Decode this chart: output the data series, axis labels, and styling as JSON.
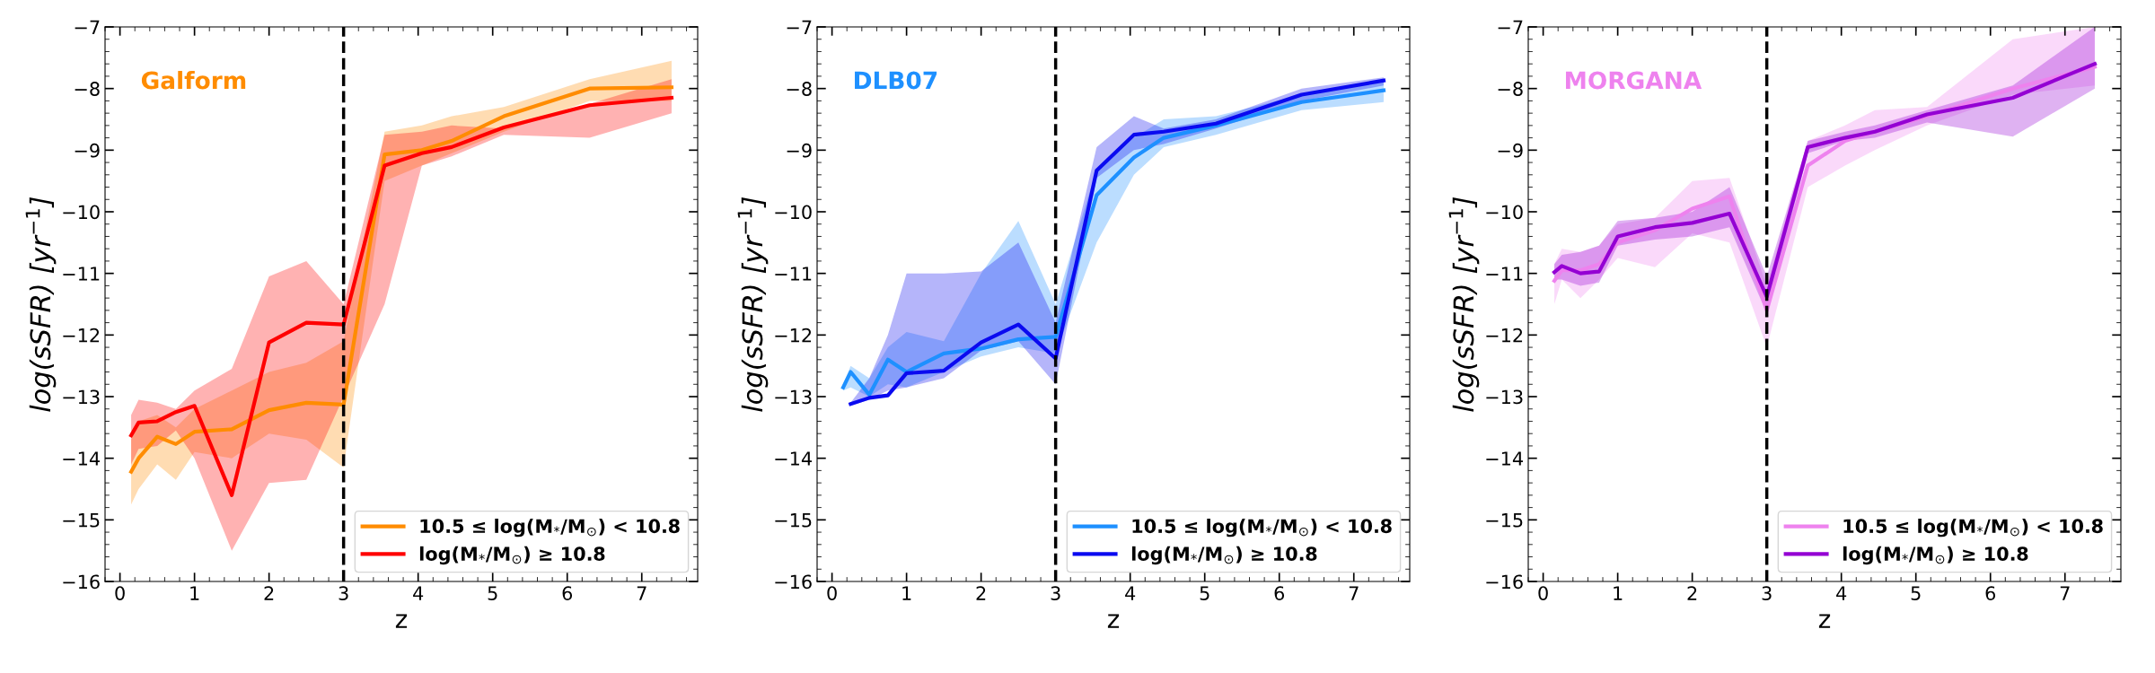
{
  "chart_data": [
    {
      "type": "line",
      "annotations": [
        "Galform"
      ],
      "xlabel": "z",
      "ylabel": "log(sSFR) [yr$^{−1}$]",
      "xlim": [
        -0.2,
        7.75
      ],
      "ylim": [
        -16,
        -7
      ],
      "xticks": [
        0,
        1,
        2,
        3,
        4,
        5,
        6,
        7
      ],
      "yticks": [
        {
          "value": -16,
          "label": "−16"
        },
        {
          "value": -15,
          "label": "−15"
        },
        {
          "value": -14,
          "label": "−14"
        },
        {
          "value": -13,
          "label": "−13"
        },
        {
          "value": -12,
          "label": "−12"
        },
        {
          "value": -11,
          "label": "−11"
        },
        {
          "value": -10,
          "label": "−10"
        },
        {
          "value": -9,
          "label": "−9"
        },
        {
          "value": -8,
          "label": "−8"
        },
        {
          "value": -7,
          "label": "−7"
        }
      ],
      "legend": "bottom right",
      "grid": false,
      "ref_lines": [
        {
          "axis": "x",
          "value": 3,
          "label": null,
          "color": "#000000",
          "line_style": "dashed"
        }
      ],
      "x": [
        0.15,
        0.25,
        0.5,
        0.75,
        1.0,
        1.5,
        2.0,
        2.5,
        3.0,
        3.55,
        4.05,
        4.45,
        5.15,
        6.3,
        7.4
      ],
      "series": [
        {
          "name": "10.5 ≤ log(M$_{*}$/M$_{⊙}$) < 10.8",
          "color": "#ff8c00",
          "values": [
            -14.22,
            -14.0,
            -13.65,
            -13.77,
            -13.57,
            -13.53,
            -13.22,
            -13.1,
            -13.13,
            -9.07,
            -9.0,
            -8.85,
            -8.45,
            -8.0,
            -7.98
          ],
          "lower": [
            -14.75,
            -14.5,
            -14.1,
            -14.35,
            -13.9,
            -14.0,
            -13.6,
            -13.7,
            -14.15,
            -9.5,
            -9.25,
            -9.05,
            -8.7,
            -8.2,
            -8.2
          ],
          "upper": [
            -13.7,
            -13.4,
            -13.3,
            -13.5,
            -13.2,
            -12.9,
            -12.6,
            -12.45,
            -12.1,
            -8.7,
            -8.6,
            -8.45,
            -8.3,
            -7.85,
            -7.55
          ]
        },
        {
          "name": "log(M$_{*}$/M$_{⊙}$) ≥ 10.8",
          "color": "#ff0000",
          "values": [
            -13.63,
            -13.42,
            -13.4,
            -13.25,
            -13.15,
            -14.6,
            -12.12,
            -11.8,
            -11.83,
            -9.25,
            -9.05,
            -8.95,
            -8.63,
            -8.27,
            -8.15
          ],
          "lower": [
            -14.1,
            -13.85,
            -13.8,
            -13.55,
            -14.0,
            -15.5,
            -14.4,
            -14.35,
            -13.0,
            -11.5,
            -9.25,
            -9.1,
            -8.75,
            -8.8,
            -8.4
          ],
          "upper": [
            -13.3,
            -13.05,
            -13.1,
            -13.2,
            -12.9,
            -12.55,
            -11.05,
            -10.8,
            -11.5,
            -8.75,
            -8.7,
            -8.6,
            -8.65,
            -8.25,
            -7.85
          ]
        }
      ]
    },
    {
      "type": "line",
      "annotations": [
        "DLB07"
      ],
      "xlabel": "z",
      "ylabel": "log(sSFR) [yr$^{−1}$]",
      "xlim": [
        -0.2,
        7.75
      ],
      "ylim": [
        -16,
        -7
      ],
      "xticks": [
        0,
        1,
        2,
        3,
        4,
        5,
        6,
        7
      ],
      "yticks": [
        {
          "value": -16,
          "label": "−16"
        },
        {
          "value": -15,
          "label": "−15"
        },
        {
          "value": -14,
          "label": "−14"
        },
        {
          "value": -13,
          "label": "−13"
        },
        {
          "value": -12,
          "label": "−12"
        },
        {
          "value": -11,
          "label": "−11"
        },
        {
          "value": -10,
          "label": "−10"
        },
        {
          "value": -9,
          "label": "−9"
        },
        {
          "value": -8,
          "label": "−8"
        },
        {
          "value": -7,
          "label": "−7"
        }
      ],
      "legend": "bottom right",
      "grid": false,
      "ref_lines": [
        {
          "axis": "x",
          "value": 3,
          "label": null,
          "color": "#000000",
          "line_style": "dashed"
        }
      ],
      "x": [
        0.15,
        0.25,
        0.5,
        0.75,
        1.0,
        1.5,
        2.0,
        2.5,
        3.0,
        3.55,
        4.05,
        4.45,
        5.15,
        6.3,
        7.4
      ],
      "series": [
        {
          "name": "10.5 ≤ log(M$_{*}$/M$_{⊙}$) < 10.8",
          "color": "#1e90ff",
          "values": [
            -12.85,
            -12.6,
            -12.97,
            -12.4,
            -12.6,
            -12.3,
            -12.22,
            -12.07,
            -12.03,
            -9.73,
            -9.12,
            -8.8,
            -8.6,
            -8.22,
            -8.03
          ],
          "lower": [
            -12.9,
            -12.85,
            -13.0,
            -12.8,
            -12.85,
            -12.6,
            -12.35,
            -12.2,
            -12.3,
            -10.5,
            -9.4,
            -8.95,
            -8.75,
            -8.35,
            -8.22
          ],
          "upper": [
            -12.8,
            -12.5,
            -12.7,
            -12.2,
            -11.95,
            -12.1,
            -11.0,
            -10.15,
            -11.5,
            -9.3,
            -8.8,
            -8.5,
            -8.45,
            -8.1,
            -7.9
          ]
        },
        {
          "name": "log(M$_{*}$/M$_{⊙}$) ≥ 10.8",
          "color": "#0a0af0",
          "values": [
            null,
            -13.12,
            -13.02,
            -12.98,
            -12.62,
            -12.58,
            -12.12,
            -11.83,
            -12.38,
            -9.33,
            -8.75,
            -8.7,
            -8.57,
            -8.1,
            -7.87
          ],
          "lower": [
            null,
            -13.15,
            -13.05,
            -12.9,
            -12.85,
            -12.7,
            -12.25,
            -12.1,
            -12.8,
            -9.45,
            -9.0,
            -8.9,
            -8.65,
            -8.2,
            -7.95
          ],
          "upper": [
            null,
            -13.1,
            -12.7,
            -12.0,
            -11.0,
            -11.0,
            -10.97,
            -10.5,
            -11.8,
            -8.95,
            -8.45,
            -8.65,
            -8.5,
            -8.0,
            -7.82
          ]
        }
      ]
    },
    {
      "type": "line",
      "annotations": [
        "MORGANA"
      ],
      "xlabel": "z",
      "ylabel": "log(sSFR) [yr$^{−1}$]",
      "xlim": [
        -0.2,
        7.75
      ],
      "ylim": [
        -16,
        -7
      ],
      "xticks": [
        0,
        1,
        2,
        3,
        4,
        5,
        6,
        7
      ],
      "yticks": [
        {
          "value": -16,
          "label": "−16"
        },
        {
          "value": -15,
          "label": "−15"
        },
        {
          "value": -14,
          "label": "−14"
        },
        {
          "value": -13,
          "label": "−13"
        },
        {
          "value": -12,
          "label": "−12"
        },
        {
          "value": -11,
          "label": "−11"
        },
        {
          "value": -10,
          "label": "−10"
        },
        {
          "value": -9,
          "label": "−9"
        },
        {
          "value": -8,
          "label": "−8"
        },
        {
          "value": -7,
          "label": "−7"
        }
      ],
      "legend": "bottom right",
      "grid": false,
      "ref_lines": [
        {
          "axis": "x",
          "value": 3,
          "label": null,
          "color": "#000000",
          "line_style": "dashed"
        }
      ],
      "x": [
        0.15,
        0.25,
        0.5,
        0.75,
        1.0,
        1.5,
        2.0,
        2.5,
        3.0,
        3.55,
        4.05,
        4.45,
        5.15,
        6.3,
        7.4
      ],
      "series": [
        {
          "name": "10.5 ≤ log(M$_{*}$/M$_{⊙}$) < 10.8",
          "color": "#ee82ee",
          "values": [
            -11.12,
            -10.95,
            -10.95,
            -10.85,
            -10.5,
            -10.3,
            -9.95,
            -9.75,
            -11.6,
            -9.25,
            -8.85,
            -8.7,
            -8.45,
            -8.0,
            -7.65
          ],
          "lower": [
            -11.5,
            -11.1,
            -11.4,
            -11.1,
            -10.75,
            -10.9,
            -10.35,
            -10.5,
            -12.2,
            -9.6,
            -9.25,
            -9.0,
            -8.6,
            -8.1,
            -7.95
          ],
          "upper": [
            -10.85,
            -10.6,
            -10.65,
            -10.55,
            -10.2,
            -10.1,
            -9.5,
            -9.45,
            -11.2,
            -8.85,
            -8.6,
            -8.35,
            -8.3,
            -7.2,
            -7.0
          ]
        },
        {
          "name": "log(M$_{*}$/M$_{⊙}$) ≥ 10.8",
          "color": "#9400d3",
          "values": [
            -10.98,
            -10.88,
            -11.0,
            -10.97,
            -10.4,
            -10.25,
            -10.18,
            -10.03,
            -11.38,
            -8.95,
            -8.8,
            -8.7,
            -8.42,
            -8.15,
            -7.6
          ],
          "lower": [
            -11.1,
            -11.1,
            -11.2,
            -11.15,
            -10.55,
            -10.45,
            -10.4,
            -10.25,
            -11.65,
            -9.05,
            -8.85,
            -8.8,
            -8.55,
            -8.78,
            -8.0
          ],
          "upper": [
            -10.85,
            -10.7,
            -10.65,
            -10.55,
            -10.15,
            -10.1,
            -10.0,
            -9.6,
            -11.05,
            -8.85,
            -8.7,
            -8.6,
            -8.35,
            -7.95,
            -7.0
          ]
        }
      ]
    }
  ]
}
